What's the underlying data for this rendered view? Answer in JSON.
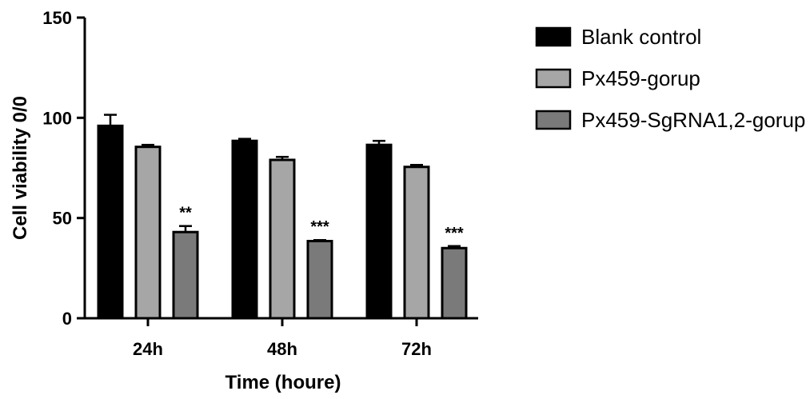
{
  "chart_data": {
    "type": "bar",
    "xlabel": "Time (houre)",
    "ylabel": "Cell viability 0/0",
    "ylim": [
      0,
      150
    ],
    "yticks": [
      0,
      50,
      100,
      150
    ],
    "categories": [
      "24h",
      "48h",
      "72h"
    ],
    "series": [
      {
        "name": "Blank control",
        "color": "#000000",
        "values": [
          96,
          88.5,
          86.5
        ],
        "errors": [
          5.5,
          1,
          2
        ]
      },
      {
        "name": "Px459-gorup",
        "color": "#a6a6a6",
        "values": [
          85.5,
          79,
          75.5
        ],
        "errors": [
          1,
          1.5,
          1
        ]
      },
      {
        "name": "Px459-SgRNA1,2-gorup",
        "color": "#7a7a7a",
        "values": [
          43,
          38.5,
          35
        ],
        "errors": [
          3,
          0.5,
          1
        ]
      }
    ],
    "annotations": [
      {
        "category": "24h",
        "series": "Px459-SgRNA1,2-gorup",
        "text": "**"
      },
      {
        "category": "48h",
        "series": "Px459-SgRNA1,2-gorup",
        "text": "***"
      },
      {
        "category": "72h",
        "series": "Px459-SgRNA1,2-gorup",
        "text": "***"
      }
    ],
    "legend": "right",
    "grid": false
  }
}
